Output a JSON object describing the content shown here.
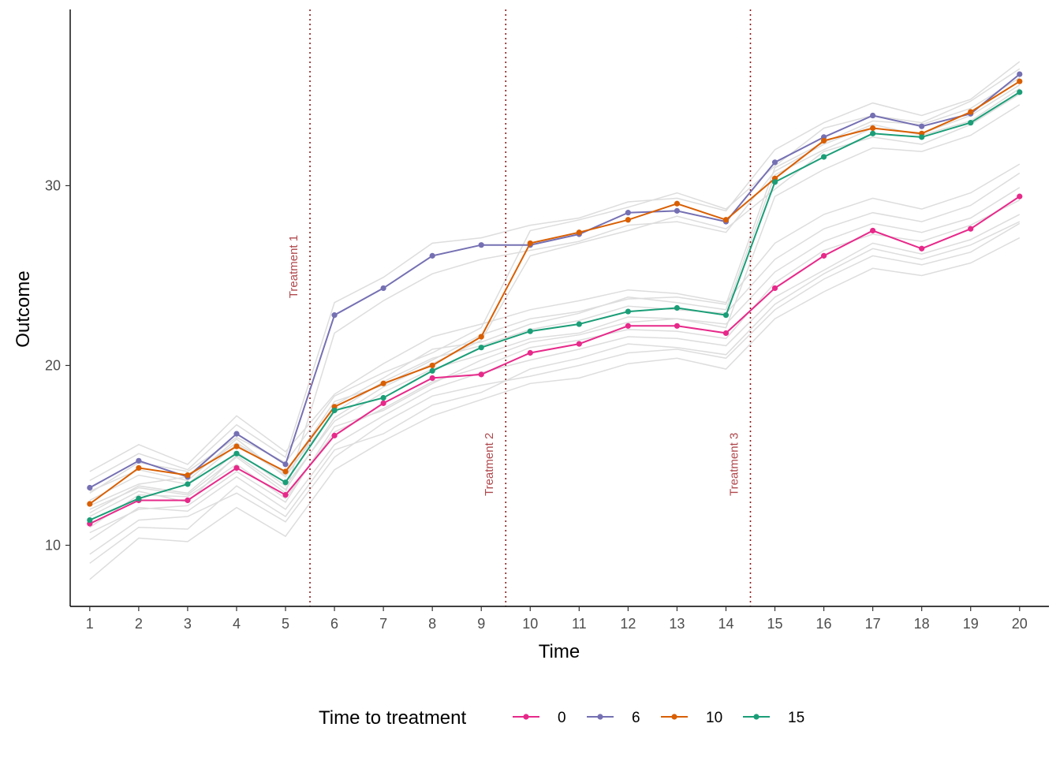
{
  "chart_data": {
    "type": "line",
    "title": "",
    "xlabel": "Time",
    "ylabel": "Outcome",
    "x": [
      1,
      2,
      3,
      4,
      5,
      6,
      7,
      8,
      9,
      10,
      11,
      12,
      13,
      14,
      15,
      16,
      17,
      18,
      19,
      20
    ],
    "xlim": [
      0.6,
      20.6
    ],
    "ylim": [
      6.6,
      39.8
    ],
    "y_ticks": [
      10,
      20,
      30
    ],
    "grid": false,
    "legend": {
      "title": "Time to treatment",
      "position": "bottom"
    },
    "series": [
      {
        "name": "0",
        "color": "#e7298a",
        "values": [
          11.2,
          12.5,
          12.5,
          14.3,
          12.8,
          16.1,
          17.9,
          19.3,
          19.5,
          20.7,
          21.2,
          22.2,
          22.2,
          21.8,
          24.3,
          26.1,
          27.5,
          26.5,
          27.6,
          29.4
        ]
      },
      {
        "name": "6",
        "color": "#7570b3",
        "values": [
          13.2,
          14.7,
          13.8,
          16.2,
          14.5,
          22.8,
          24.3,
          26.1,
          26.7,
          26.7,
          27.3,
          28.5,
          28.6,
          28.0,
          31.3,
          32.7,
          33.9,
          33.3,
          34.0,
          36.2
        ]
      },
      {
        "name": "10",
        "color": "#d95f02",
        "values": [
          12.3,
          14.3,
          13.9,
          15.5,
          14.1,
          17.7,
          19.0,
          20.0,
          21.6,
          26.8,
          27.4,
          28.1,
          29.0,
          28.1,
          30.4,
          32.5,
          33.2,
          32.9,
          34.1,
          35.8
        ]
      },
      {
        "name": "15",
        "color": "#1b9e77",
        "values": [
          11.4,
          12.6,
          13.4,
          15.1,
          13.5,
          17.5,
          18.2,
          19.7,
          21.0,
          21.9,
          22.3,
          23.0,
          23.2,
          22.8,
          30.2,
          31.6,
          32.9,
          32.7,
          33.5,
          35.2
        ]
      }
    ],
    "background_series_color": "#dddddd",
    "background_series": [
      [
        9.5,
        11.4,
        11.6,
        12.9,
        11.3,
        14.9,
        16.8,
        18.3,
        18.9,
        19.4,
        20.0,
        20.7,
        20.9,
        20.4,
        23.1,
        24.8,
        26.1,
        25.6,
        26.3,
        27.9
      ],
      [
        10.3,
        12.1,
        11.9,
        13.8,
        12.0,
        15.6,
        17.2,
        18.7,
        19.6,
        20.3,
        20.9,
        21.6,
        21.5,
        21.1,
        23.8,
        25.3,
        26.8,
        26.2,
        27.0,
        28.4
      ],
      [
        11.0,
        12.8,
        12.7,
        14.5,
        12.6,
        16.3,
        17.6,
        19.1,
        19.9,
        21.0,
        21.4,
        22.0,
        21.9,
        21.5,
        24.6,
        26.4,
        27.3,
        26.9,
        27.8,
        29.2
      ],
      [
        11.8,
        13.3,
        12.9,
        15.2,
        13.3,
        16.9,
        18.5,
        19.8,
        20.6,
        21.5,
        21.8,
        22.7,
        22.6,
        22.3,
        25.2,
        26.9,
        27.9,
        27.4,
        28.2,
        29.9
      ],
      [
        12.5,
        13.9,
        13.4,
        15.6,
        13.9,
        17.4,
        19.1,
        20.4,
        21.1,
        22.0,
        22.5,
        23.3,
        23.1,
        22.9,
        25.9,
        27.6,
        28.5,
        28.0,
        28.9,
        30.7
      ],
      [
        8.1,
        10.4,
        10.2,
        12.1,
        10.5,
        14.2,
        15.8,
        17.2,
        18.1,
        19.0,
        19.3,
        20.1,
        20.4,
        19.8,
        22.6,
        24.1,
        25.4,
        25.0,
        25.7,
        27.1
      ],
      [
        14.1,
        15.6,
        14.5,
        17.2,
        15.2,
        18.4,
        20.1,
        21.6,
        22.3,
        23.1,
        23.6,
        24.2,
        24.0,
        23.5,
        26.8,
        28.4,
        29.3,
        28.7,
        29.6,
        31.2
      ],
      [
        12.0,
        13.2,
        12.8,
        14.9,
        12.9,
        21.8,
        23.6,
        25.1,
        25.9,
        26.4,
        26.9,
        27.8,
        28.0,
        27.4,
        30.8,
        32.3,
        33.4,
        32.8,
        33.6,
        35.4
      ],
      [
        13.6,
        15.1,
        14.2,
        16.7,
        14.9,
        23.5,
        24.9,
        26.8,
        27.1,
        27.8,
        28.2,
        29.1,
        29.3,
        28.6,
        32.0,
        33.5,
        34.6,
        33.9,
        34.8,
        36.9
      ],
      [
        11.6,
        13.0,
        12.4,
        15.0,
        13.1,
        17.1,
        18.8,
        20.1,
        21.4,
        26.1,
        26.8,
        27.5,
        28.3,
        27.6,
        29.8,
        31.9,
        32.7,
        32.3,
        33.4,
        35.1
      ],
      [
        12.9,
        14.6,
        14.1,
        16.0,
        14.6,
        18.3,
        19.6,
        20.7,
        22.1,
        27.5,
        28.1,
        28.8,
        29.6,
        28.7,
        31.1,
        33.2,
        33.9,
        33.5,
        34.7,
        36.5
      ],
      [
        10.7,
        12.0,
        12.2,
        14.1,
        12.4,
        16.6,
        17.5,
        19.0,
        20.3,
        21.3,
        21.7,
        22.4,
        22.6,
        22.1,
        29.4,
        30.9,
        32.1,
        31.9,
        32.8,
        34.5
      ],
      [
        12.2,
        13.4,
        13.8,
        15.7,
        14.0,
        18.0,
        18.9,
        20.3,
        21.7,
        22.6,
        23.0,
        23.7,
        23.8,
        23.4,
        31.0,
        32.4,
        33.6,
        33.4,
        34.3,
        36.0
      ],
      [
        9.0,
        11.0,
        10.9,
        13.3,
        11.6,
        15.3,
        16.2,
        17.8,
        18.5,
        19.8,
        20.4,
        21.2,
        21.0,
        20.6,
        23.4,
        25.1,
        26.5,
        25.9,
        26.7,
        28.0
      ],
      [
        13.0,
        14.2,
        13.6,
        15.9,
        13.8,
        17.8,
        19.3,
        20.9,
        21.3,
        22.3,
        22.9,
        23.8,
        23.5,
        23.1,
        30.6,
        32.0,
        33.2,
        32.9,
        33.9,
        35.6
      ]
    ]
  },
  "vlines": [
    {
      "x": 5.5,
      "label": "Treatment 1"
    },
    {
      "x": 9.5,
      "label": "Treatment 2"
    },
    {
      "x": 14.5,
      "label": "Treatment 3"
    }
  ]
}
